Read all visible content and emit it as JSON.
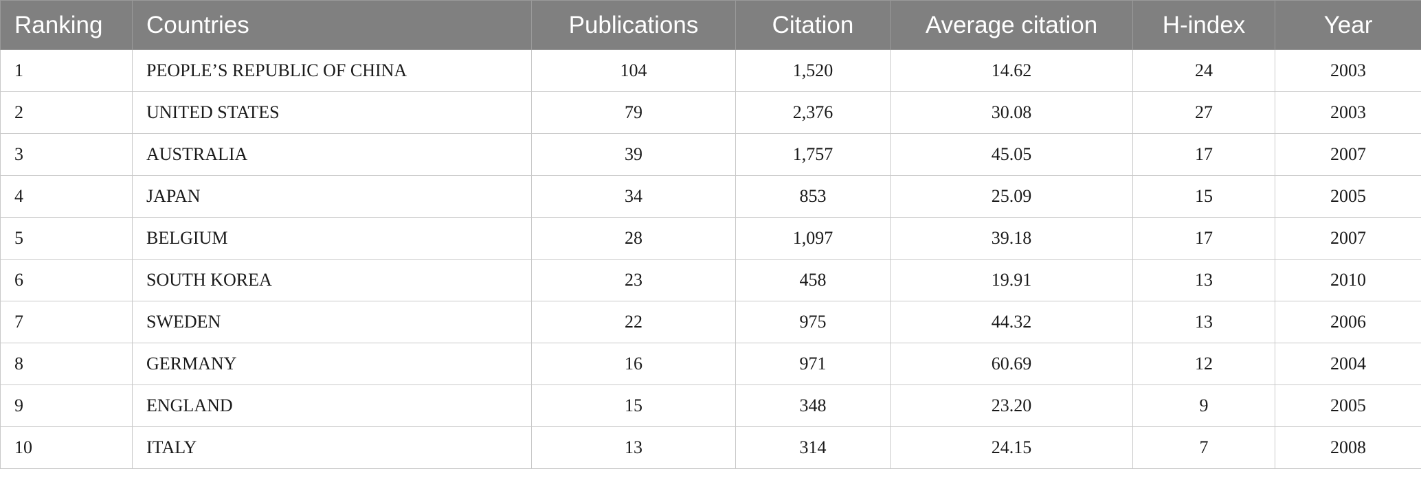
{
  "table": {
    "headers": [
      "Ranking",
      "Countries",
      "Publications",
      "Citation",
      "Average citation",
      "H-index",
      "Year"
    ],
    "rows": [
      [
        "1",
        "PEOPLE’S REPUBLIC OF CHINA",
        "104",
        "1,520",
        "14.62",
        "24",
        "2003"
      ],
      [
        "2",
        "UNITED STATES",
        "79",
        "2,376",
        "30.08",
        "27",
        "2003"
      ],
      [
        "3",
        "AUSTRALIA",
        "39",
        "1,757",
        "45.05",
        "17",
        "2007"
      ],
      [
        "4",
        "JAPAN",
        "34",
        "853",
        "25.09",
        "15",
        "2005"
      ],
      [
        "5",
        "BELGIUM",
        "28",
        "1,097",
        "39.18",
        "17",
        "2007"
      ],
      [
        "6",
        "SOUTH KOREA",
        "23",
        "458",
        "19.91",
        "13",
        "2010"
      ],
      [
        "7",
        "SWEDEN",
        "22",
        "975",
        "44.32",
        "13",
        "2006"
      ],
      [
        "8",
        "GERMANY",
        "16",
        "971",
        "60.69",
        "12",
        "2004"
      ],
      [
        "9",
        "ENGLAND",
        "15",
        "348",
        "23.20",
        "9",
        "2005"
      ],
      [
        "10",
        "ITALY",
        "13",
        "314",
        "24.15",
        "7",
        "2008"
      ]
    ]
  },
  "colors": {
    "header_bg": "#808080",
    "header_text": "#ffffff",
    "border": "#c9c9c9"
  }
}
